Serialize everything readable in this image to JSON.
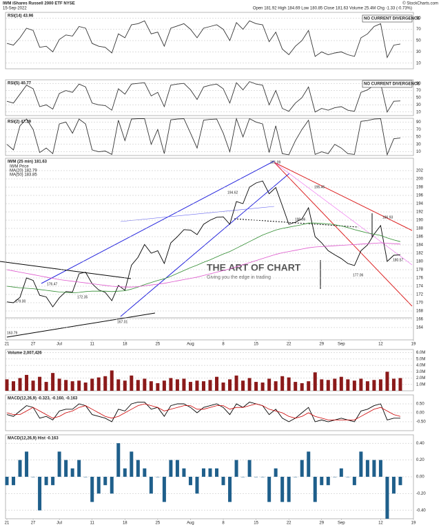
{
  "header": {
    "symbol": "IWM iShares Russell 2000 ETF NYSE",
    "date": "15-Sep-2022",
    "quote": "Open 181.92  High 184.69  Low 180.85  Close 181.63  Volume 25.4M  Chg -1.33 (-0.73%)",
    "copyright": "© StockCharts.com"
  },
  "watermark": {
    "title": "THE ART OF CHART",
    "subtitle": "Giving you the edge in trading"
  },
  "chart_data": [
    {
      "type": "line",
      "title": "RSI(14) 43.96",
      "ylim": [
        0,
        100
      ],
      "yticks": [
        10,
        30,
        50,
        70,
        90
      ],
      "grid": true,
      "annotations": [
        "NO CURRENT DIVERGENCE"
      ],
      "series": [
        {
          "color": "#333333",
          "values": [
            45,
            42,
            55,
            72,
            68,
            38,
            40,
            30,
            52,
            60,
            58,
            75,
            72,
            45,
            40,
            38,
            28,
            62,
            55,
            78,
            80,
            85,
            62,
            65,
            40,
            72,
            76,
            80,
            70,
            55,
            72,
            75,
            78,
            70,
            50,
            82,
            70,
            85,
            80,
            78,
            48,
            65,
            35,
            25,
            40,
            50,
            68,
            22,
            30,
            25,
            28,
            30,
            25,
            22,
            55,
            62,
            75,
            80,
            20,
            42,
            44,
            null,
            null
          ]
        }
      ]
    },
    {
      "type": "line",
      "title": "RSI(5) 40.77",
      "ylim": [
        0,
        100
      ],
      "yticks": [
        10,
        30,
        50,
        70,
        90
      ],
      "grid": true,
      "annotations": [
        "NO CURRENT DIVERGENCE"
      ],
      "series": [
        {
          "color": "#333333",
          "values": [
            40,
            35,
            60,
            85,
            75,
            25,
            30,
            18,
            62,
            70,
            65,
            88,
            80,
            35,
            30,
            28,
            15,
            75,
            60,
            88,
            90,
            92,
            55,
            65,
            25,
            85,
            88,
            90,
            72,
            45,
            80,
            85,
            88,
            75,
            35,
            92,
            72,
            95,
            88,
            85,
            30,
            70,
            20,
            12,
            35,
            50,
            80,
            10,
            20,
            15,
            22,
            25,
            15,
            12,
            65,
            72,
            85,
            90,
            10,
            40,
            41,
            null,
            null
          ]
        }
      ]
    },
    {
      "type": "line",
      "title": "RSI(2) 47.39",
      "ylim": [
        0,
        100
      ],
      "yticks": [
        10,
        30,
        50,
        70,
        90
      ],
      "grid": true,
      "series": [
        {
          "color": "#333333",
          "values": [
            30,
            15,
            80,
            98,
            70,
            8,
            20,
            5,
            85,
            90,
            60,
            98,
            85,
            15,
            10,
            12,
            3,
            95,
            40,
            98,
            99,
            99,
            30,
            70,
            5,
            96,
            98,
            99,
            60,
            20,
            95,
            97,
            98,
            60,
            10,
            99,
            50,
            99,
            90,
            85,
            8,
            80,
            5,
            2,
            40,
            70,
            95,
            3,
            10,
            5,
            30,
            20,
            5,
            3,
            92,
            94,
            98,
            99,
            2,
            45,
            47,
            null,
            null
          ]
        }
      ]
    },
    {
      "type": "line",
      "title": "IWM (25 min) 181.63",
      "ylim": [
        161,
        205
      ],
      "grid": true,
      "yticks": [
        164,
        166,
        168,
        170,
        172,
        174,
        176,
        178,
        180,
        182,
        184,
        186,
        188,
        190,
        192,
        194,
        196,
        198,
        200,
        202
      ],
      "categories": [
        "21",
        null,
        null,
        null,
        "27",
        null,
        null,
        null,
        "Jul",
        null,
        null,
        null,
        null,
        "11",
        null,
        null,
        null,
        null,
        "18",
        null,
        null,
        null,
        null,
        "25",
        null,
        null,
        null,
        null,
        "Aug",
        null,
        null,
        null,
        null,
        "8",
        null,
        null,
        null,
        null,
        "15",
        null,
        null,
        null,
        null,
        "22",
        null,
        null,
        null,
        null,
        "29",
        null,
        null,
        "Sep",
        null,
        null,
        null,
        null,
        null,
        "12",
        null,
        null,
        null,
        null,
        "19"
      ],
      "annotations": [
        "201.09",
        "194.62",
        "195.45",
        "190.06",
        "177.06",
        "180.57",
        "167.01",
        "163.79",
        "176.47",
        "172.35",
        "179.00",
        "186.93"
      ],
      "series": [
        {
          "name": "IWM Price",
          "color": "#000000",
          "values": [
            170.2,
            170.0,
            171.3,
            176.0,
            175.4,
            171.8,
            171.4,
            169.0,
            171.2,
            172.7,
            172.6,
            177.0,
            177.4,
            174.6,
            173.1,
            172.5,
            170.5,
            174.2,
            173.0,
            179.1,
            181.0,
            184.1,
            182.0,
            182.6,
            179.5,
            184.5,
            186.0,
            187.7,
            187.6,
            186.5,
            189.0,
            190.0,
            190.7,
            190.8,
            189.0,
            194.5,
            194.0,
            198.0,
            199.0,
            199.5,
            196.4,
            197.9,
            193.5,
            189.0,
            189.5,
            190.3,
            193.0,
            186.0,
            184.5,
            182.6,
            181.6,
            180.7,
            179.5,
            179.0,
            182.6,
            184.0,
            186.6,
            188.7,
            180.0,
            181.5,
            181.6,
            null,
            null
          ]
        },
        {
          "name": "MA(20) 182.79",
          "color": "#2e8b2e",
          "values": [
            174.0,
            173.8,
            173.6,
            173.5,
            173.4,
            173.2,
            173.0,
            172.8,
            172.6,
            172.5,
            172.4,
            172.5,
            172.7,
            172.8,
            172.8,
            172.8,
            172.7,
            172.8,
            172.9,
            173.3,
            173.8,
            174.4,
            174.9,
            175.4,
            175.8,
            176.4,
            177.1,
            177.8,
            178.5,
            179.1,
            179.8,
            180.4,
            181.1,
            181.8,
            182.4,
            183.2,
            184.0,
            184.8,
            185.6,
            186.4,
            187.0,
            187.6,
            188.0,
            188.3,
            188.6,
            188.9,
            189.3,
            189.3,
            189.2,
            189.1,
            188.9,
            188.6,
            188.2,
            187.7,
            187.3,
            186.9,
            186.6,
            186.3,
            185.7,
            185.2,
            184.8,
            null,
            null
          ]
        },
        {
          "name": "MA(50) 183.85",
          "color": "#dd55cc",
          "values": [
            178.0,
            177.7,
            177.4,
            177.1,
            176.8,
            176.5,
            176.2,
            175.9,
            175.6,
            175.4,
            175.2,
            175.0,
            174.8,
            174.6,
            174.4,
            174.2,
            174.0,
            173.9,
            173.8,
            173.8,
            173.9,
            174.1,
            174.3,
            174.5,
            174.7,
            175.0,
            175.3,
            175.6,
            175.9,
            176.2,
            176.6,
            177.0,
            177.4,
            177.8,
            178.2,
            178.7,
            179.2,
            179.7,
            180.2,
            180.7,
            181.2,
            181.7,
            182.1,
            182.4,
            182.7,
            183.0,
            183.3,
            183.5,
            183.6,
            183.7,
            183.8,
            183.9,
            184.0,
            184.1,
            184.2,
            184.3,
            184.4,
            184.5,
            184.4,
            184.3,
            184.2,
            null,
            null
          ]
        }
      ]
    },
    {
      "type": "bar",
      "title": "Volume 2,007,426",
      "color": "#8b1a1a",
      "ylim": [
        0,
        6500000
      ],
      "grid": true,
      "yticks": [
        {
          "value": 1000000,
          "label": "1.0M"
        },
        {
          "value": 2000000,
          "label": "2.0M"
        },
        {
          "value": 3000000,
          "label": "3.0M"
        },
        {
          "value": 4000000,
          "label": "4.0M"
        },
        {
          "value": 5000000,
          "label": "5.0M"
        },
        {
          "value": 6000000,
          "label": "6.0M"
        }
      ],
      "values": [
        1800000,
        1500000,
        2000000,
        2500000,
        1600000,
        2200000,
        1400000,
        2800000,
        1900000,
        1700000,
        1500000,
        1600000,
        1300000,
        1900000,
        2100000,
        2300000,
        3200000,
        1800000,
        1600000,
        2400000,
        1700000,
        1900000,
        1500000,
        1200000,
        1600000,
        2000000,
        1800000,
        1900000,
        1400000,
        1600000,
        1500000,
        1700000,
        2200000,
        1300000,
        1800000,
        2400000,
        1600000,
        2000000,
        1400000,
        1300000,
        1900000,
        1500000,
        2300000,
        2100000,
        1400000,
        1200000,
        1500000,
        2900000,
        1800000,
        1700000,
        1900000,
        2200000,
        1800000,
        1600000,
        1900000,
        1500000,
        1700000,
        1800000,
        3000000,
        1900000,
        2000000,
        null,
        null
      ]
    },
    {
      "type": "line",
      "title": "MACD(12,26,9) -0.323, -0.160, -0.163",
      "ylim": [
        -1.0,
        1.0
      ],
      "grid": true,
      "yticks": [
        {
          "value": -0.5,
          "label": "-0.50"
        },
        {
          "value": 0,
          "label": "0.00"
        },
        {
          "value": 0.5,
          "label": "0.50"
        }
      ],
      "series": [
        {
          "color": "#000000",
          "values": [
            -0.1,
            -0.2,
            0.1,
            0.4,
            0.3,
            -0.3,
            -0.2,
            -0.4,
            0.1,
            0.2,
            0.2,
            0.5,
            0.4,
            -0.1,
            -0.2,
            -0.3,
            -0.5,
            0.2,
            0.1,
            0.5,
            0.6,
            0.6,
            0.2,
            0.3,
            -0.2,
            0.4,
            0.5,
            0.5,
            0.3,
            0.0,
            0.3,
            0.4,
            0.5,
            0.3,
            -0.1,
            0.5,
            0.3,
            0.6,
            0.5,
            0.4,
            -0.1,
            0.2,
            -0.3,
            -0.5,
            -0.3,
            0.0,
            0.3,
            -0.5,
            -0.4,
            -0.5,
            -0.4,
            -0.3,
            -0.4,
            -0.5,
            0.1,
            0.2,
            0.4,
            0.5,
            -0.4,
            -0.3,
            -0.3,
            null,
            null
          ]
        },
        {
          "color": "#cc0000",
          "values": [
            0.0,
            -0.1,
            -0.1,
            0.1,
            0.3,
            0.1,
            -0.1,
            -0.3,
            -0.2,
            0.0,
            0.1,
            0.3,
            0.4,
            0.2,
            0.0,
            -0.2,
            -0.3,
            -0.2,
            0.0,
            0.2,
            0.4,
            0.5,
            0.4,
            0.3,
            0.1,
            0.2,
            0.3,
            0.4,
            0.4,
            0.2,
            0.2,
            0.3,
            0.4,
            0.4,
            0.2,
            0.3,
            0.3,
            0.4,
            0.5,
            0.4,
            0.2,
            0.1,
            0.0,
            -0.2,
            -0.3,
            -0.2,
            0.0,
            -0.2,
            -0.3,
            -0.4,
            -0.4,
            -0.4,
            -0.4,
            -0.4,
            -0.2,
            0.0,
            0.2,
            0.3,
            0.1,
            -0.1,
            -0.2,
            null,
            null
          ]
        }
      ]
    },
    {
      "type": "bar",
      "title": "MACD(12,26,9) Hist -0.163",
      "color": "#1f5f8b",
      "ylim": [
        -0.5,
        0.5
      ],
      "grid": true,
      "yticks": [
        {
          "value": -0.4,
          "label": "-0.40"
        },
        {
          "value": -0.2,
          "label": "-0.20"
        },
        {
          "value": 0,
          "label": "0.00"
        },
        {
          "value": 0.2,
          "label": "0.20"
        },
        {
          "value": 0.4,
          "label": "0.40"
        }
      ],
      "categories": [
        "21",
        null,
        null,
        null,
        "27",
        null,
        null,
        null,
        "Jul",
        null,
        null,
        null,
        null,
        "11",
        null,
        null,
        null,
        null,
        "18",
        null,
        null,
        null,
        null,
        "25",
        null,
        null,
        null,
        null,
        "Aug",
        null,
        null,
        null,
        null,
        "8",
        null,
        null,
        null,
        null,
        "15",
        null,
        null,
        null,
        null,
        "22",
        null,
        null,
        null,
        null,
        "29",
        null,
        null,
        "Sep",
        null,
        null,
        null,
        null,
        null,
        "12",
        null,
        null,
        null,
        null,
        "19"
      ],
      "values": [
        -0.1,
        -0.1,
        0.2,
        0.3,
        0.0,
        -0.4,
        -0.1,
        -0.1,
        0.3,
        0.2,
        0.1,
        0.2,
        0.0,
        -0.3,
        -0.2,
        -0.1,
        -0.2,
        0.4,
        0.1,
        0.3,
        0.2,
        0.1,
        -0.2,
        0.0,
        -0.3,
        0.2,
        0.2,
        0.1,
        -0.1,
        -0.2,
        0.1,
        0.1,
        0.1,
        -0.1,
        -0.3,
        0.2,
        0.0,
        0.2,
        0.0,
        0.0,
        -0.3,
        0.1,
        -0.3,
        -0.3,
        0.0,
        0.2,
        0.3,
        -0.3,
        -0.1,
        -0.1,
        0.0,
        0.1,
        0.0,
        -0.1,
        0.3,
        0.2,
        0.2,
        0.2,
        -0.5,
        -0.2,
        -0.1,
        null,
        null
      ]
    }
  ]
}
